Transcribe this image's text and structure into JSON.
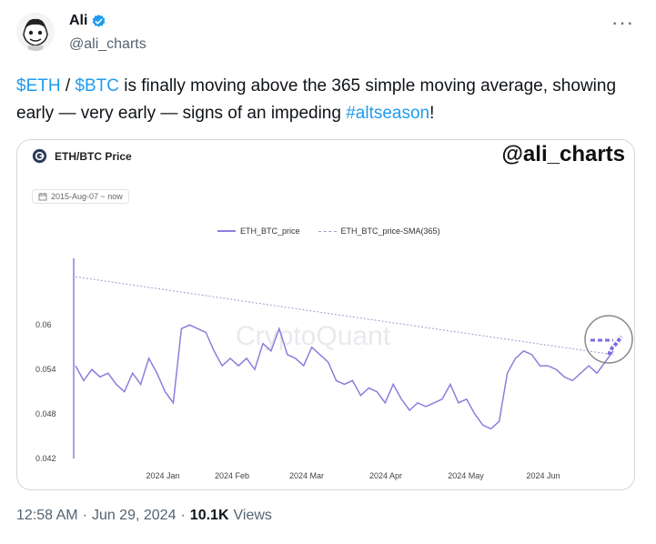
{
  "author": {
    "name": "Ali",
    "handle": "@ali_charts"
  },
  "tweet": {
    "eth": "$ETH",
    "sep": " / ",
    "btc": "$BTC",
    "text1": " is finally moving above the 365 simple moving average, showing early — very early — signs of an impeding ",
    "hashtag": "#altseason",
    "text2": "!"
  },
  "card": {
    "chart_title": "ETH/BTC Price",
    "watermark_handle": "@ali_charts",
    "date_range": "2015-Aug-07 ~ now",
    "brand_watermark": "CryptoQuant"
  },
  "chart_data": {
    "type": "line",
    "title": "ETH/BTC Price",
    "xlabel": "",
    "ylabel": "",
    "ylim": [
      0.042,
      0.068
    ],
    "yticks": [
      "0.06",
      "0.054",
      "0.048",
      "0.042"
    ],
    "xticks": [
      "2024 Jan",
      "2024 Feb",
      "2024 Mar",
      "2024 Apr",
      "2024 May",
      "2024 Jun"
    ],
    "series": [
      {
        "name": "ETH_BTC_price",
        "color": "#8a7fdc",
        "x": [
          0,
          3,
          6,
          9,
          12,
          15,
          18,
          21,
          24,
          27,
          30,
          33,
          36,
          39,
          42,
          45,
          48,
          51,
          54,
          57,
          60,
          63,
          66,
          69,
          72,
          75,
          78,
          81,
          84,
          87,
          90,
          93,
          96,
          99,
          102,
          105,
          108,
          111,
          114,
          117,
          120,
          123,
          126,
          129,
          132,
          135,
          138,
          141,
          144,
          147,
          150,
          153,
          156,
          159,
          162,
          165,
          168,
          171,
          174,
          177,
          180,
          183,
          186,
          189,
          192,
          195,
          198
        ],
        "values": [
          0.0545,
          0.0525,
          0.054,
          0.053,
          0.0535,
          0.052,
          0.051,
          0.0535,
          0.052,
          0.0555,
          0.0535,
          0.051,
          0.0495,
          0.0595,
          0.06,
          0.0595,
          0.059,
          0.0565,
          0.0545,
          0.0555,
          0.0545,
          0.0555,
          0.054,
          0.0575,
          0.0565,
          0.0595,
          0.056,
          0.0555,
          0.0545,
          0.057,
          0.056,
          0.055,
          0.0525,
          0.052,
          0.0525,
          0.0505,
          0.0515,
          0.051,
          0.0495,
          0.052,
          0.05,
          0.0485,
          0.0495,
          0.049,
          0.0495,
          0.05,
          0.052,
          0.0495,
          0.05,
          0.048,
          0.0465,
          0.046,
          0.047,
          0.0535,
          0.0555,
          0.0565,
          0.056,
          0.0545,
          0.0545,
          0.054,
          0.053,
          0.0525,
          0.0535,
          0.0545,
          0.0535,
          0.055,
          0.0565
        ]
      },
      {
        "name": "ETH_BTC_price-SMA(365)",
        "color": "#a09ad0",
        "x": [
          0,
          198
        ],
        "values": [
          0.0665,
          0.056
        ]
      }
    ]
  }
}
